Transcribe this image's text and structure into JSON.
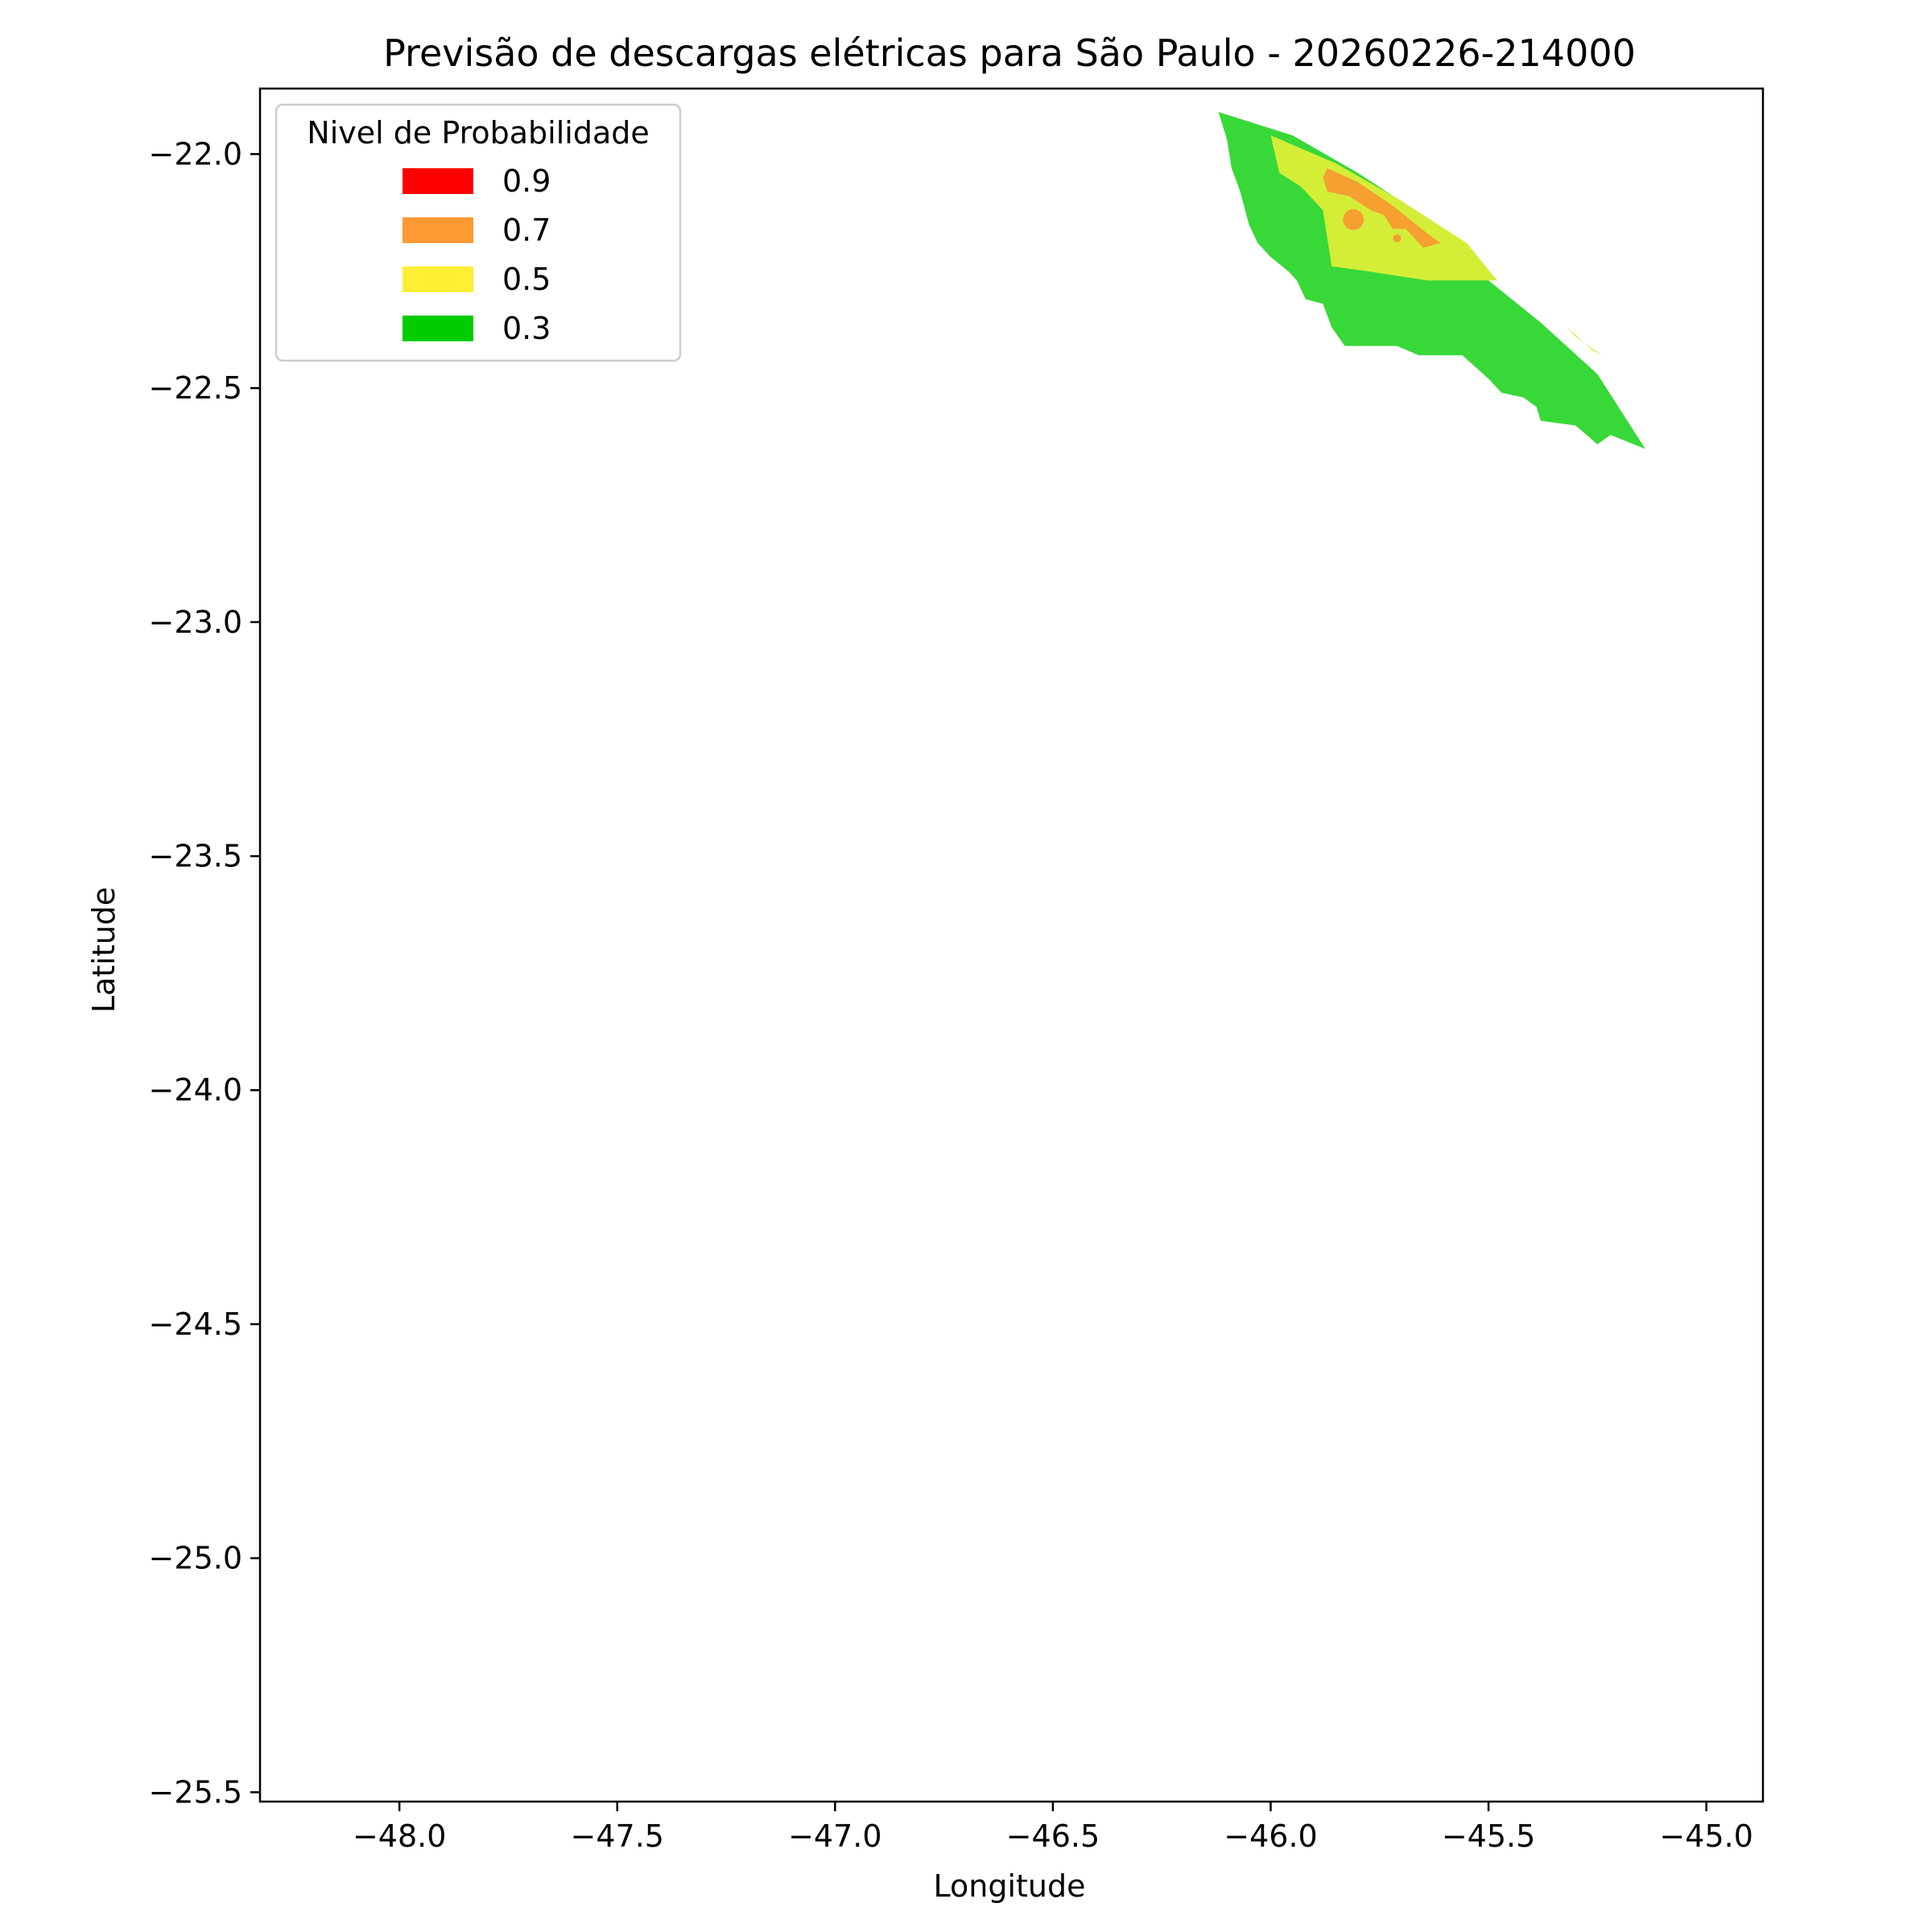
{
  "chart_data": {
    "type": "heatmap",
    "title": "Previsão de descargas elétricas para São Paulo - 20260226-214000",
    "xlabel": "Longitude",
    "ylabel": "Latitude",
    "xlim": [
      -48.32,
      -44.87
    ],
    "ylim": [
      -25.52,
      -21.86
    ],
    "xticks": [
      {
        "value": -48.0,
        "label": "−48.0"
      },
      {
        "value": -47.5,
        "label": "−47.5"
      },
      {
        "value": -47.0,
        "label": "−47.0"
      },
      {
        "value": -46.5,
        "label": "−46.5"
      },
      {
        "value": -46.0,
        "label": "−46.0"
      },
      {
        "value": -45.5,
        "label": "−45.5"
      },
      {
        "value": -45.0,
        "label": "−45.0"
      }
    ],
    "yticks": [
      {
        "value": -22.0,
        "label": "−22.0"
      },
      {
        "value": -22.5,
        "label": "−22.5"
      },
      {
        "value": -23.0,
        "label": "−23.0"
      },
      {
        "value": -23.5,
        "label": "−23.5"
      },
      {
        "value": -24.0,
        "label": "−24.0"
      },
      {
        "value": -24.5,
        "label": "−24.5"
      },
      {
        "value": -25.0,
        "label": "−25.0"
      },
      {
        "value": -25.5,
        "label": "−25.5"
      }
    ],
    "grid": false,
    "legend": {
      "title": "Nivel de Probabilidade",
      "placement": "top-left",
      "entries": [
        {
          "label": "0.9",
          "color": "#ff0000"
        },
        {
          "label": "0.7",
          "color": "#ff9933"
        },
        {
          "label": "0.5",
          "color": "#ffee33"
        },
        {
          "label": "0.3",
          "color": "#00cc00"
        }
      ]
    },
    "regions": [
      {
        "level": 0.3,
        "color": "#38d838",
        "polygon": [
          [
            -46.12,
            -21.91
          ],
          [
            -45.95,
            -21.96
          ],
          [
            -45.8,
            -22.04
          ],
          [
            -45.62,
            -22.15
          ],
          [
            -45.5,
            -22.27
          ],
          [
            -45.38,
            -22.36
          ],
          [
            -45.25,
            -22.47
          ],
          [
            -45.14,
            -22.63
          ],
          [
            -45.22,
            -22.6
          ],
          [
            -45.25,
            -22.62
          ],
          [
            -45.3,
            -22.58
          ],
          [
            -45.38,
            -22.57
          ],
          [
            -45.39,
            -22.54
          ],
          [
            -45.42,
            -22.52
          ],
          [
            -45.47,
            -22.51
          ],
          [
            -45.5,
            -22.48
          ],
          [
            -45.56,
            -22.43
          ],
          [
            -45.66,
            -22.43
          ],
          [
            -45.71,
            -22.41
          ],
          [
            -45.83,
            -22.41
          ],
          [
            -45.86,
            -22.37
          ],
          [
            -45.88,
            -22.32
          ],
          [
            -45.92,
            -22.31
          ],
          [
            -45.94,
            -22.27
          ],
          [
            -45.96,
            -22.25
          ],
          [
            -46.0,
            -22.22
          ],
          [
            -46.03,
            -22.19
          ],
          [
            -46.05,
            -22.15
          ],
          [
            -46.07,
            -22.08
          ],
          [
            -46.09,
            -22.03
          ],
          [
            -46.1,
            -21.97
          ]
        ]
      },
      {
        "level": 0.5,
        "color": "#d4ee38",
        "polygon": [
          [
            -46.0,
            -21.96
          ],
          [
            -45.85,
            -22.02
          ],
          [
            -45.7,
            -22.1
          ],
          [
            -45.55,
            -22.19
          ],
          [
            -45.48,
            -22.27
          ],
          [
            -45.64,
            -22.27
          ],
          [
            -45.78,
            -22.25
          ],
          [
            -45.86,
            -22.24
          ],
          [
            -45.88,
            -22.12
          ],
          [
            -45.93,
            -22.07
          ],
          [
            -45.98,
            -22.04
          ]
        ]
      },
      {
        "level": 0.5,
        "color": "#d4ee38",
        "polygon": [
          [
            -45.32,
            -22.37
          ],
          [
            -45.26,
            -22.42
          ],
          [
            -45.24,
            -22.43
          ],
          [
            -45.3,
            -22.39
          ]
        ]
      },
      {
        "level": 0.7,
        "color": "#f5a030",
        "polygon": [
          [
            -45.87,
            -22.03
          ],
          [
            -45.8,
            -22.06
          ],
          [
            -45.72,
            -22.11
          ],
          [
            -45.64,
            -22.17
          ],
          [
            -45.61,
            -22.19
          ],
          [
            -45.65,
            -22.2
          ],
          [
            -45.69,
            -22.16
          ],
          [
            -45.72,
            -22.16
          ],
          [
            -45.74,
            -22.13
          ],
          [
            -45.77,
            -22.12
          ],
          [
            -45.82,
            -22.09
          ],
          [
            -45.87,
            -22.08
          ],
          [
            -45.88,
            -22.05
          ]
        ]
      }
    ],
    "markers": [
      {
        "lon": -45.81,
        "lat": -22.14,
        "color": "#f5a030"
      },
      {
        "lon": -45.71,
        "lat": -22.18,
        "color": "#f5a030"
      }
    ]
  }
}
